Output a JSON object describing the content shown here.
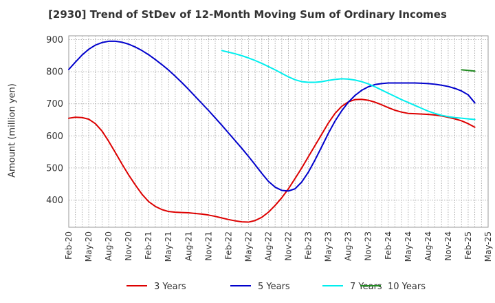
{
  "chart_data": {
    "type": "line",
    "title": "[2930]  Trend of StDev of 12-Month Moving Sum of Ordinary Incomes",
    "xlabel": "",
    "ylabel": "Amount (million yen)",
    "x_ticks": [
      "Feb-20",
      "May-20",
      "Aug-20",
      "Nov-20",
      "Feb-21",
      "May-21",
      "Aug-21",
      "Nov-21",
      "Feb-22",
      "May-22",
      "Aug-22",
      "Nov-22",
      "Feb-23",
      "May-23",
      "Aug-23",
      "Nov-23",
      "Feb-24",
      "May-24",
      "Aug-24",
      "Nov-24",
      "Feb-25",
      "May-25"
    ],
    "y_ticks": [
      400,
      500,
      600,
      700,
      800,
      900
    ],
    "ylim": [
      315,
      912
    ],
    "grid": true,
    "legend_position": "bottom",
    "series": [
      {
        "name": "3 Years",
        "color": "#dd0000",
        "values": [
          [
            "2020-02",
            655
          ],
          [
            "2020-03",
            658
          ],
          [
            "2020-04",
            657
          ],
          [
            "2020-05",
            652
          ],
          [
            "2020-06",
            638
          ],
          [
            "2020-07",
            615
          ],
          [
            "2020-08",
            583
          ],
          [
            "2020-09",
            548
          ],
          [
            "2020-10",
            512
          ],
          [
            "2020-11",
            478
          ],
          [
            "2020-12",
            447
          ],
          [
            "2021-01",
            418
          ],
          [
            "2021-02",
            395
          ],
          [
            "2021-03",
            380
          ],
          [
            "2021-04",
            370
          ],
          [
            "2021-05",
            364
          ],
          [
            "2021-06",
            362
          ],
          [
            "2021-07",
            361
          ],
          [
            "2021-08",
            360
          ],
          [
            "2021-09",
            358
          ],
          [
            "2021-10",
            356
          ],
          [
            "2021-11",
            353
          ],
          [
            "2021-12",
            349
          ],
          [
            "2022-01",
            344
          ],
          [
            "2022-02",
            339
          ],
          [
            "2022-03",
            335
          ],
          [
            "2022-04",
            332
          ],
          [
            "2022-05",
            331
          ],
          [
            "2022-06",
            336
          ],
          [
            "2022-07",
            346
          ],
          [
            "2022-08",
            362
          ],
          [
            "2022-09",
            383
          ],
          [
            "2022-10",
            407
          ],
          [
            "2022-11",
            435
          ],
          [
            "2022-12",
            467
          ],
          [
            "2023-01",
            500
          ],
          [
            "2023-02",
            535
          ],
          [
            "2023-03",
            570
          ],
          [
            "2023-04",
            605
          ],
          [
            "2023-05",
            640
          ],
          [
            "2023-06",
            670
          ],
          [
            "2023-07",
            692
          ],
          [
            "2023-08",
            706
          ],
          [
            "2023-09",
            713
          ],
          [
            "2023-10",
            714
          ],
          [
            "2023-11",
            711
          ],
          [
            "2023-12",
            705
          ],
          [
            "2024-01",
            697
          ],
          [
            "2024-02",
            688
          ],
          [
            "2024-03",
            680
          ],
          [
            "2024-04",
            674
          ],
          [
            "2024-05",
            670
          ],
          [
            "2024-06",
            669
          ],
          [
            "2024-07",
            668
          ],
          [
            "2024-08",
            667
          ],
          [
            "2024-09",
            665
          ],
          [
            "2024-10",
            662
          ],
          [
            "2024-11",
            658
          ],
          [
            "2024-12",
            653
          ],
          [
            "2025-01",
            647
          ],
          [
            "2025-02",
            638
          ],
          [
            "2025-03",
            627
          ]
        ]
      },
      {
        "name": "5 Years",
        "color": "#0000cc",
        "values": [
          [
            "2020-02",
            807
          ],
          [
            "2020-03",
            830
          ],
          [
            "2020-04",
            852
          ],
          [
            "2020-05",
            870
          ],
          [
            "2020-06",
            883
          ],
          [
            "2020-07",
            891
          ],
          [
            "2020-08",
            895
          ],
          [
            "2020-09",
            895
          ],
          [
            "2020-10",
            892
          ],
          [
            "2020-11",
            886
          ],
          [
            "2020-12",
            877
          ],
          [
            "2021-01",
            866
          ],
          [
            "2021-02",
            853
          ],
          [
            "2021-03",
            838
          ],
          [
            "2021-04",
            822
          ],
          [
            "2021-05",
            805
          ],
          [
            "2021-06",
            786
          ],
          [
            "2021-07",
            766
          ],
          [
            "2021-08",
            745
          ],
          [
            "2021-09",
            723
          ],
          [
            "2021-10",
            701
          ],
          [
            "2021-11",
            679
          ],
          [
            "2021-12",
            656
          ],
          [
            "2022-01",
            633
          ],
          [
            "2022-02",
            609
          ],
          [
            "2022-03",
            585
          ],
          [
            "2022-04",
            561
          ],
          [
            "2022-05",
            536
          ],
          [
            "2022-06",
            510
          ],
          [
            "2022-07",
            483
          ],
          [
            "2022-08",
            458
          ],
          [
            "2022-09",
            440
          ],
          [
            "2022-10",
            430
          ],
          [
            "2022-11",
            428
          ],
          [
            "2022-12",
            435
          ],
          [
            "2023-01",
            456
          ],
          [
            "2023-02",
            487
          ],
          [
            "2023-03",
            525
          ],
          [
            "2023-04",
            566
          ],
          [
            "2023-05",
            608
          ],
          [
            "2023-06",
            646
          ],
          [
            "2023-07",
            678
          ],
          [
            "2023-08",
            705
          ],
          [
            "2023-09",
            726
          ],
          [
            "2023-10",
            742
          ],
          [
            "2023-11",
            753
          ],
          [
            "2023-12",
            760
          ],
          [
            "2024-01",
            763
          ],
          [
            "2024-02",
            765
          ],
          [
            "2024-03",
            765
          ],
          [
            "2024-04",
            765
          ],
          [
            "2024-05",
            765
          ],
          [
            "2024-06",
            765
          ],
          [
            "2024-07",
            764
          ],
          [
            "2024-08",
            763
          ],
          [
            "2024-09",
            761
          ],
          [
            "2024-10",
            758
          ],
          [
            "2024-11",
            754
          ],
          [
            "2024-12",
            748
          ],
          [
            "2025-01",
            740
          ],
          [
            "2025-02",
            728
          ],
          [
            "2025-03",
            703
          ]
        ]
      },
      {
        "name": "7 Years",
        "color": "#00eeee",
        "values": [
          [
            "2022-01",
            866
          ],
          [
            "2022-02",
            861
          ],
          [
            "2022-03",
            856
          ],
          [
            "2022-04",
            850
          ],
          [
            "2022-05",
            843
          ],
          [
            "2022-06",
            835
          ],
          [
            "2022-07",
            826
          ],
          [
            "2022-08",
            816
          ],
          [
            "2022-09",
            806
          ],
          [
            "2022-10",
            795
          ],
          [
            "2022-11",
            784
          ],
          [
            "2022-12",
            775
          ],
          [
            "2023-01",
            769
          ],
          [
            "2023-02",
            767
          ],
          [
            "2023-03",
            767
          ],
          [
            "2023-04",
            769
          ],
          [
            "2023-05",
            773
          ],
          [
            "2023-06",
            776
          ],
          [
            "2023-07",
            778
          ],
          [
            "2023-08",
            777
          ],
          [
            "2023-09",
            774
          ],
          [
            "2023-10",
            769
          ],
          [
            "2023-11",
            762
          ],
          [
            "2023-12",
            753
          ],
          [
            "2024-01",
            743
          ],
          [
            "2024-02",
            733
          ],
          [
            "2024-03",
            723
          ],
          [
            "2024-04",
            713
          ],
          [
            "2024-05",
            704
          ],
          [
            "2024-06",
            695
          ],
          [
            "2024-07",
            686
          ],
          [
            "2024-08",
            677
          ],
          [
            "2024-09",
            670
          ],
          [
            "2024-10",
            664
          ],
          [
            "2024-11",
            660
          ],
          [
            "2024-12",
            657
          ],
          [
            "2025-01",
            655
          ],
          [
            "2025-02",
            653
          ],
          [
            "2025-03",
            651
          ]
        ]
      },
      {
        "name": "10 Years",
        "color": "#228b22",
        "values": [
          [
            "2025-01",
            806
          ],
          [
            "2025-02",
            804
          ],
          [
            "2025-03",
            802
          ]
        ]
      }
    ]
  }
}
